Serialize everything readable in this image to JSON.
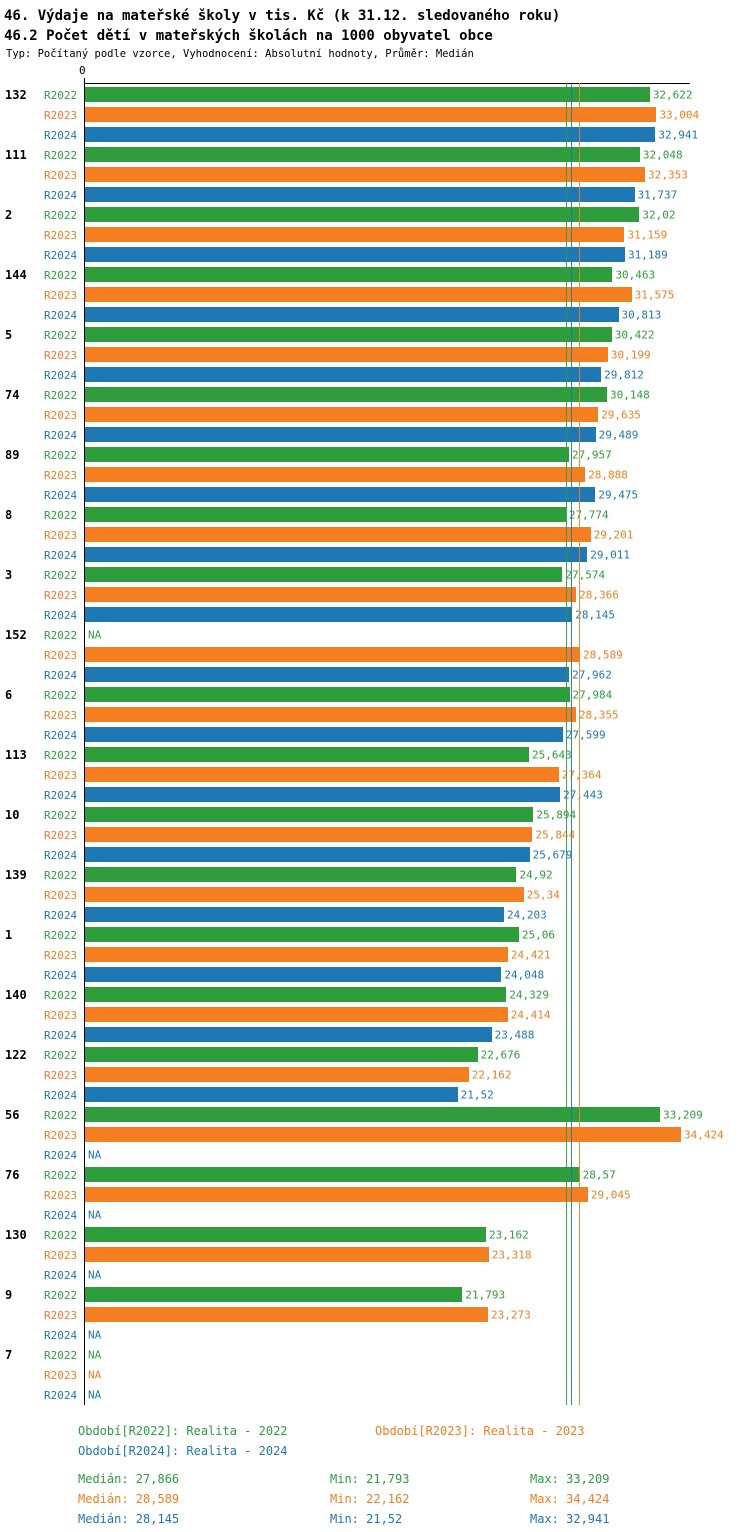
{
  "header": {
    "title1": "46. Výdaje na mateřské školy v tis. Kč (k 31.12. sledovaného roku)",
    "title2": "46.2 Počet dětí v mateřských školách na 1000 obyvatel obce",
    "subtitle": "Typ: Počítaný podle vzorce, Vyhodnocení: Absolutní hodnoty, Průměr: Medián"
  },
  "colors": {
    "r2022": "#2e9e3c",
    "r2023": "#f57e20",
    "r2024": "#1f77b4"
  },
  "axis": {
    "zero_label": "0",
    "xmax": 35
  },
  "chart_data": {
    "type": "bar",
    "orientation": "horizontal",
    "series_labels": [
      "R2022",
      "R2023",
      "R2024"
    ],
    "xlim": [
      0,
      35
    ],
    "medians": {
      "R2022": 27.866,
      "R2023": 28.589,
      "R2024": 28.145
    },
    "groups": [
      {
        "id": "132",
        "values": [
          32.622,
          33.004,
          32.941
        ],
        "display": [
          "32,622",
          "33,004",
          "32,941"
        ]
      },
      {
        "id": "111",
        "values": [
          32.048,
          32.353,
          31.737
        ],
        "display": [
          "32,048",
          "32,353",
          "31,737"
        ]
      },
      {
        "id": "2",
        "values": [
          32.02,
          31.159,
          31.189
        ],
        "display": [
          "32,02",
          "31,159",
          "31,189"
        ]
      },
      {
        "id": "144",
        "values": [
          30.463,
          31.575,
          30.813
        ],
        "display": [
          "30,463",
          "31,575",
          "30,813"
        ]
      },
      {
        "id": "5",
        "values": [
          30.422,
          30.199,
          29.812
        ],
        "display": [
          "30,422",
          "30,199",
          "29,812"
        ]
      },
      {
        "id": "74",
        "values": [
          30.148,
          29.635,
          29.489
        ],
        "display": [
          "30,148",
          "29,635",
          "29,489"
        ]
      },
      {
        "id": "89",
        "values": [
          27.957,
          28.888,
          29.475
        ],
        "display": [
          "27,957",
          "28,888",
          "29,475"
        ]
      },
      {
        "id": "8",
        "values": [
          27.774,
          29.201,
          29.011
        ],
        "display": [
          "27,774",
          "29,201",
          "29,011"
        ]
      },
      {
        "id": "3",
        "values": [
          27.574,
          28.366,
          28.145
        ],
        "display": [
          "27,574",
          "28,366",
          "28,145"
        ]
      },
      {
        "id": "152",
        "values": [
          null,
          28.589,
          27.962
        ],
        "display": [
          "NA",
          "28,589",
          "27,962"
        ]
      },
      {
        "id": "6",
        "values": [
          27.984,
          28.355,
          27.599
        ],
        "display": [
          "27,984",
          "28,355",
          "27,599"
        ]
      },
      {
        "id": "113",
        "values": [
          25.643,
          27.364,
          27.443
        ],
        "display": [
          "25,643",
          "27,364",
          "27,443"
        ]
      },
      {
        "id": "10",
        "values": [
          25.894,
          25.844,
          25.679
        ],
        "display": [
          "25,894",
          "25,844",
          "25,679"
        ]
      },
      {
        "id": "139",
        "values": [
          24.92,
          25.34,
          24.203
        ],
        "display": [
          "24,92",
          "25,34",
          "24,203"
        ]
      },
      {
        "id": "1",
        "values": [
          25.06,
          24.421,
          24.048
        ],
        "display": [
          "25,06",
          "24,421",
          "24,048"
        ]
      },
      {
        "id": "140",
        "values": [
          24.329,
          24.414,
          23.488
        ],
        "display": [
          "24,329",
          "24,414",
          "23,488"
        ]
      },
      {
        "id": "122",
        "values": [
          22.676,
          22.162,
          21.52
        ],
        "display": [
          "22,676",
          "22,162",
          "21,52"
        ]
      },
      {
        "id": "56",
        "values": [
          33.209,
          34.424,
          null
        ],
        "display": [
          "33,209",
          "34,424",
          "NA"
        ]
      },
      {
        "id": "76",
        "values": [
          28.57,
          29.045,
          null
        ],
        "display": [
          "28,57",
          "29,045",
          "NA"
        ]
      },
      {
        "id": "130",
        "values": [
          23.162,
          23.318,
          null
        ],
        "display": [
          "23,162",
          "23,318",
          "NA"
        ]
      },
      {
        "id": "9",
        "values": [
          21.793,
          23.273,
          null
        ],
        "display": [
          "21,793",
          "23,273",
          "NA"
        ]
      },
      {
        "id": "7",
        "values": [
          null,
          null,
          null
        ],
        "display": [
          "NA",
          "NA",
          "NA"
        ]
      }
    ]
  },
  "legend": [
    {
      "label": "Období[R2022]: Realita - 2022"
    },
    {
      "label": "Období[R2023]: Realita - 2023"
    },
    {
      "label": "Období[R2024]: Realita - 2024"
    }
  ],
  "stats": [
    {
      "median": "Medián: 27,866",
      "min": "Min: 21,793",
      "max": "Max: 33,209"
    },
    {
      "median": "Medián: 28,589",
      "min": "Min: 22,162",
      "max": "Max: 34,424"
    },
    {
      "median": "Medián: 28,145",
      "min": "Min: 21,52",
      "max": "Max: 32,941"
    }
  ]
}
